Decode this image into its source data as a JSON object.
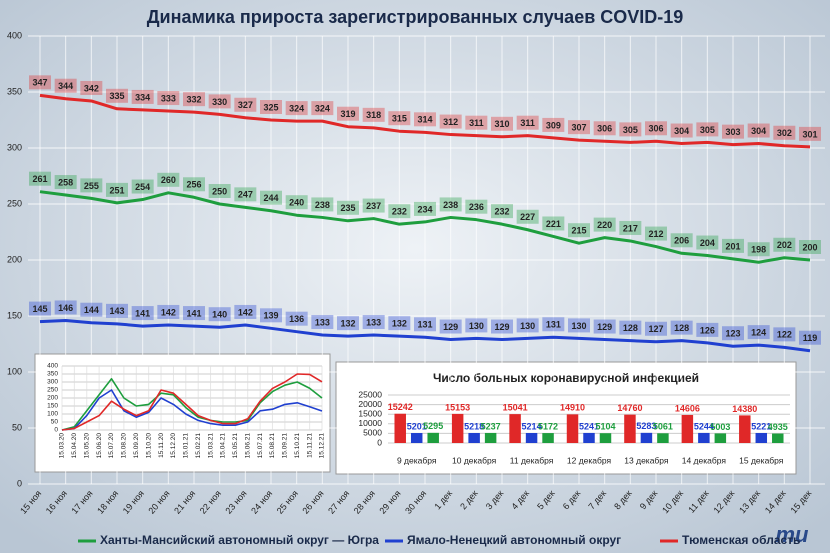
{
  "logo": "mu",
  "chart_data": [
    {
      "type": "line",
      "title": "Динамика прироста зарегистрированных случаев COVID-19",
      "categories": [
        "15 ноя",
        "16 ноя",
        "17 ноя",
        "18 ноя",
        "19 ноя",
        "20 ноя",
        "21 ноя",
        "22 ноя",
        "23 ноя",
        "24 ноя",
        "25 ноя",
        "26 ноя",
        "27 ноя",
        "28 ноя",
        "29 ноя",
        "30 ноя",
        "1 дек",
        "2 дек",
        "3 дек",
        "4 дек",
        "5 дек",
        "6 дек",
        "7 дек",
        "8 дек",
        "9 дек",
        "10 дек",
        "11 дек",
        "12 дек",
        "13 дек",
        "14 дек",
        "15 дек"
      ],
      "series": [
        {
          "name": "Ханты-Мансийский автономный округ — Югра",
          "color": "#1e9e3e",
          "values": [
            261,
            258,
            255,
            251,
            254,
            260,
            256,
            250,
            247,
            244,
            240,
            238,
            235,
            237,
            232,
            234,
            238,
            236,
            232,
            227,
            221,
            215,
            220,
            217,
            212,
            206,
            204,
            201,
            198,
            202,
            200
          ]
        },
        {
          "name": "Ямало-Ненецкий автономный округ",
          "color": "#2040d0",
          "values": [
            145,
            146,
            144,
            143,
            141,
            142,
            141,
            140,
            142,
            139,
            136,
            133,
            132,
            133,
            132,
            131,
            129,
            130,
            129,
            130,
            131,
            130,
            129,
            128,
            127,
            128,
            126,
            123,
            124,
            122,
            119
          ]
        },
        {
          "name": "Тюменская область",
          "color": "#e02828",
          "values": [
            347,
            344,
            342,
            335,
            334,
            333,
            332,
            330,
            327,
            325,
            324,
            324,
            319,
            318,
            315,
            314,
            312,
            311,
            310,
            311,
            309,
            307,
            306,
            305,
            306,
            304,
            305,
            303,
            304,
            302,
            301
          ]
        }
      ],
      "ylim": [
        0,
        400
      ],
      "yticks": [
        0,
        50,
        100,
        150,
        200,
        250,
        300,
        350,
        400
      ],
      "grid": true,
      "legend": "bottom"
    },
    {
      "type": "line",
      "categories": [
        "15.03.20",
        "15.04.20",
        "15.05.20",
        "15.06.20",
        "15.07.20",
        "15.08.20",
        "15.09.20",
        "15.10.20",
        "15.11.20",
        "15.12.20",
        "15.01.21",
        "15.02.21",
        "15.03.21",
        "15.04.21",
        "15.05.21",
        "15.06.21",
        "15.07.21",
        "15.08.21",
        "15.09.21",
        "15.10.21",
        "15.11.21",
        "15.12.21"
      ],
      "series": [
        {
          "color": "#1e9e3e",
          "values": [
            0,
            20,
            120,
            220,
            320,
            200,
            150,
            160,
            230,
            220,
            140,
            80,
            60,
            50,
            50,
            60,
            170,
            240,
            280,
            300,
            261,
            200
          ]
        },
        {
          "color": "#2040d0",
          "values": [
            0,
            10,
            90,
            200,
            250,
            120,
            80,
            110,
            200,
            160,
            100,
            60,
            40,
            30,
            30,
            50,
            120,
            130,
            160,
            170,
            145,
            119
          ]
        },
        {
          "color": "#e02828",
          "values": [
            0,
            10,
            50,
            90,
            180,
            130,
            90,
            120,
            250,
            230,
            160,
            90,
            60,
            40,
            40,
            70,
            180,
            260,
            300,
            350,
            347,
            301
          ]
        }
      ],
      "ylim": [
        0,
        400
      ],
      "yticks": [
        0,
        50,
        100,
        150,
        200,
        250,
        300,
        350,
        400
      ],
      "grid": true
    },
    {
      "type": "bar",
      "title": "Число больных коронавирусной инфекцией",
      "categories": [
        "9 декабря",
        "10 декабря",
        "11 декабря",
        "12 декабря",
        "13 декабря",
        "14 декабря",
        "15 декабря"
      ],
      "series": [
        {
          "color": "#e02828",
          "values": [
            15242,
            15153,
            15041,
            14910,
            14760,
            14606,
            14380
          ]
        },
        {
          "color": "#2040d0",
          "values": [
            5201,
            5218,
            5214,
            5241,
            5283,
            5244,
            5221
          ]
        },
        {
          "color": "#1e9e3e",
          "values": [
            5295,
            5237,
            5172,
            5104,
            5061,
            5003,
            4935
          ]
        }
      ],
      "ylim": [
        0,
        25000
      ],
      "yticks": [
        0,
        5000,
        10000,
        15000,
        20000,
        25000
      ],
      "grid": true
    }
  ]
}
